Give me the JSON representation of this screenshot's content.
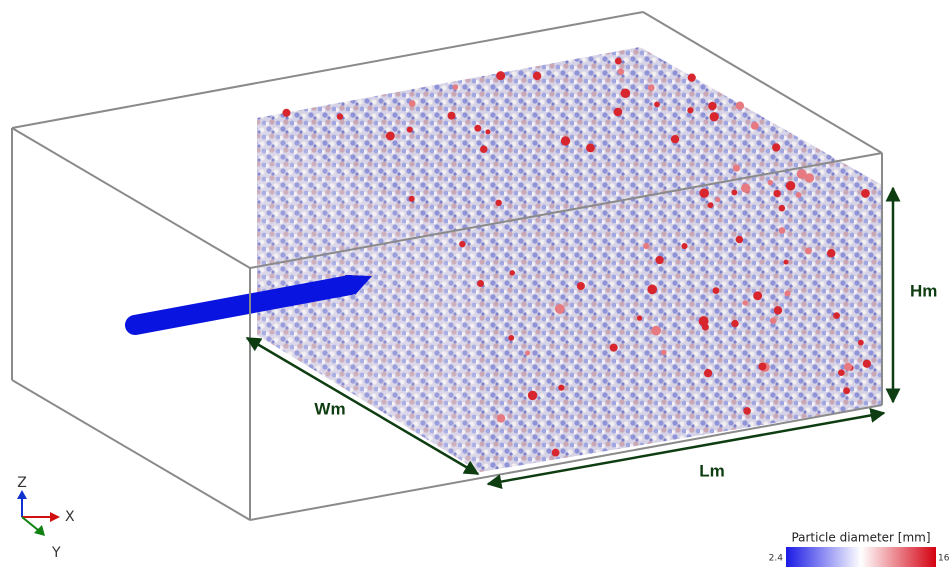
{
  "labels": {
    "width": "Wm",
    "length": "Lm",
    "height": "Hm"
  },
  "axes": {
    "z": "Z",
    "x": "X",
    "y": "Y"
  },
  "colorbar": {
    "title": "Particle diameter [mm]",
    "min": 2.4,
    "max": 16
  }
}
